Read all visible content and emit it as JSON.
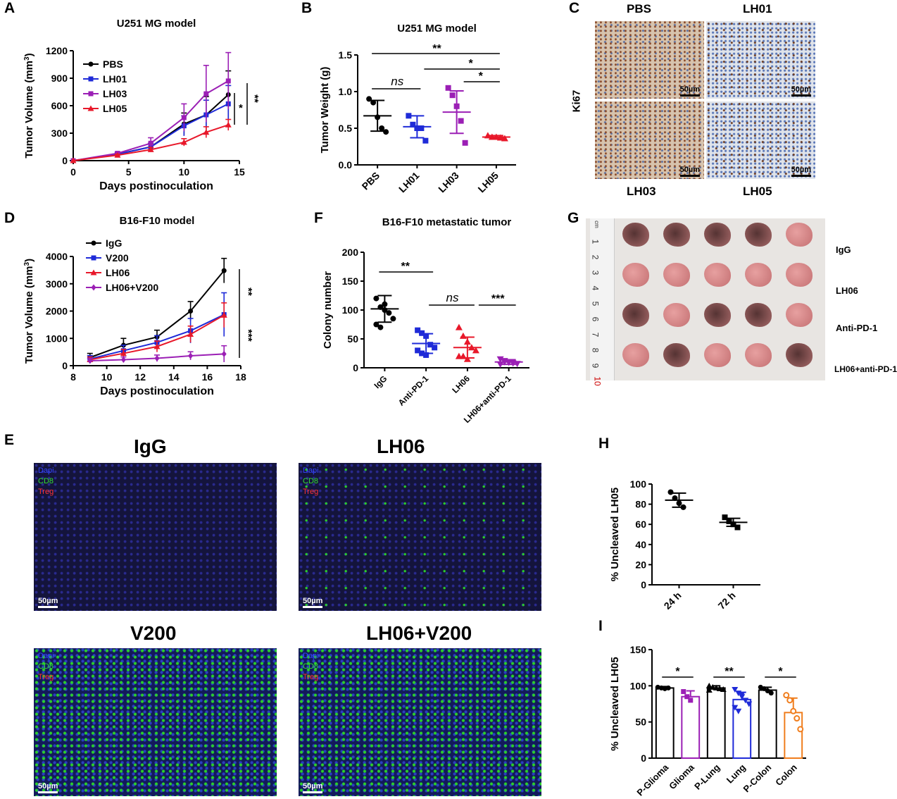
{
  "panels": {
    "A": {
      "label": "A",
      "title": "U251 MG model",
      "ylabel": "Tumor Volume (mm",
      "ylabel_sup": "3",
      "ylabel_end": ")",
      "xlabel": "Days postinoculation",
      "yticks": [
        "0",
        "300",
        "600",
        "900",
        "1200"
      ],
      "xticks": [
        "0",
        "5",
        "10",
        "15"
      ],
      "legend": [
        "PBS",
        "LH01",
        "LH03",
        "LH05"
      ],
      "sig": [
        "*",
        "**"
      ]
    },
    "B": {
      "label": "B",
      "title": "U251 MG model",
      "ylabel": "Tumor Weight (g)",
      "yticks": [
        "0.0",
        "0.5",
        "1.0",
        "1.5"
      ],
      "xticks": [
        "PBS",
        "LH01",
        "LH03",
        "LH05"
      ],
      "sig": [
        "**",
        "ns",
        "*",
        "*"
      ]
    },
    "C": {
      "label": "C",
      "top": [
        "PBS",
        "LH01"
      ],
      "bottom": [
        "LH03",
        "LH05"
      ],
      "side": "Ki67",
      "scale": "50µm"
    },
    "D": {
      "label": "D",
      "title": "B16-F10 model",
      "ylabel": "Tumor Volume (mm",
      "ylabel_sup": "3",
      "ylabel_end": ")",
      "xlabel": "Days postinoculation",
      "yticks": [
        "0",
        "1000",
        "2000",
        "3000",
        "4000"
      ],
      "xticks": [
        "8",
        "10",
        "12",
        "14",
        "16",
        "18"
      ],
      "legend": [
        "IgG",
        "V200",
        "LH06",
        "LH06+V200"
      ],
      "sig": [
        "**",
        "***"
      ]
    },
    "F": {
      "label": "F",
      "title": "B16-F10 metastatic tumor",
      "ylabel": "Colony number",
      "yticks": [
        "0",
        "50",
        "100",
        "150",
        "200"
      ],
      "xticks": [
        "IgG",
        "Anti-PD-1",
        "LH06",
        "LH06+anti-PD-1"
      ],
      "sig": [
        "**",
        "ns",
        "***"
      ]
    },
    "G": {
      "label": "G",
      "rows": [
        "IgG",
        "LH06",
        "Anti-PD-1",
        "LH06+anti-PD-1"
      ],
      "ruler": [
        "cm",
        "1",
        "2",
        "3",
        "4",
        "5",
        "6",
        "7",
        "8",
        "9",
        "10"
      ]
    },
    "E": {
      "label": "E",
      "images": [
        {
          "title": "IgG",
          "channels": [
            "Dapi",
            "CD8",
            "Treg"
          ],
          "scale": "50µm"
        },
        {
          "title": "LH06",
          "channels": [
            "Dapi",
            "CD8",
            "Treg"
          ],
          "scale": "50µm"
        },
        {
          "title": "V200",
          "channels": [
            "Dapi",
            "CD8",
            "Treg"
          ],
          "scale": "50µm"
        },
        {
          "title": "LH06+V200",
          "channels": [
            "Dapi",
            "CD8",
            "Treg"
          ],
          "scale": "50µm"
        }
      ]
    },
    "H": {
      "label": "H",
      "ylabel": "% Uncleaved LH05",
      "yticks": [
        "0",
        "20",
        "40",
        "60",
        "80",
        "100"
      ],
      "xticks": [
        "24 h",
        "72 h"
      ]
    },
    "I": {
      "label": "I",
      "ylabel": "% Uncleaved LH05",
      "yticks": [
        "0",
        "50",
        "100",
        "150"
      ],
      "xticks": [
        "P-Glioma",
        "Glioma",
        "P-Lung",
        "Lung",
        "P-Colon",
        "Colon"
      ],
      "sig": [
        "*",
        "**",
        "*"
      ]
    }
  },
  "colors": {
    "black": "#000000",
    "blue": "#1f2bd8",
    "purple": "#9b1fb5",
    "red": "#e8182a",
    "orange": "#f07e1e"
  },
  "chart_data": [
    {
      "panel": "A",
      "type": "line",
      "x": [
        0,
        4,
        7,
        10,
        12,
        14
      ],
      "xlim": [
        0,
        15
      ],
      "ylim": [
        0,
        1200
      ],
      "series": [
        {
          "name": "PBS",
          "color": "black",
          "marker": "circle",
          "values": [
            0,
            70,
            150,
            400,
            500,
            720
          ],
          "err": [
            0,
            15,
            40,
            120,
            200,
            260
          ]
        },
        {
          "name": "LH01",
          "color": "blue",
          "marker": "square",
          "values": [
            0,
            70,
            150,
            380,
            500,
            620
          ],
          "err": [
            0,
            15,
            40,
            110,
            160,
            200
          ]
        },
        {
          "name": "LH03",
          "color": "purple",
          "marker": "square",
          "values": [
            0,
            80,
            190,
            470,
            730,
            870
          ],
          "err": [
            0,
            15,
            60,
            150,
            310,
            310
          ]
        },
        {
          "name": "LH05",
          "color": "red",
          "marker": "triangle",
          "values": [
            0,
            60,
            120,
            200,
            310,
            390
          ],
          "err": [
            0,
            10,
            25,
            40,
            60,
            60
          ]
        }
      ]
    },
    {
      "panel": "B",
      "type": "scatter",
      "categories": [
        "PBS",
        "LH01",
        "LH03",
        "LH05"
      ],
      "ylim": [
        0,
        1.5
      ],
      "groups": [
        {
          "color": "black",
          "marker": "circle",
          "mean": 0.67,
          "sd": 0.21,
          "points": [
            0.9,
            0.85,
            0.65,
            0.5,
            0.45
          ]
        },
        {
          "color": "blue",
          "marker": "square",
          "mean": 0.52,
          "sd": 0.15,
          "points": [
            0.67,
            0.55,
            0.5,
            0.5,
            0.33
          ]
        },
        {
          "color": "purple",
          "marker": "square",
          "mean": 0.72,
          "sd": 0.29,
          "points": [
            1.05,
            0.95,
            0.8,
            0.6,
            0.3
          ]
        },
        {
          "color": "red",
          "marker": "triangle",
          "mean": 0.38,
          "sd": 0.02,
          "points": [
            0.4,
            0.38,
            0.38,
            0.37,
            0.36
          ]
        }
      ]
    },
    {
      "panel": "D",
      "type": "line",
      "x": [
        9,
        11,
        13,
        15,
        17
      ],
      "xlim": [
        8,
        18
      ],
      "ylim": [
        0,
        4000
      ],
      "series": [
        {
          "name": "IgG",
          "color": "black",
          "marker": "circle",
          "values": [
            300,
            750,
            1050,
            2000,
            3480
          ],
          "err": [
            150,
            250,
            250,
            350,
            450
          ]
        },
        {
          "name": "V200",
          "color": "blue",
          "marker": "square",
          "values": [
            250,
            550,
            850,
            1280,
            1870
          ],
          "err": [
            120,
            200,
            250,
            450,
            800
          ]
        },
        {
          "name": "LH06",
          "color": "red",
          "marker": "triangle",
          "values": [
            220,
            450,
            700,
            1150,
            1850
          ],
          "err": [
            100,
            150,
            200,
            300,
            450
          ]
        },
        {
          "name": "LH06+V200",
          "color": "purple",
          "marker": "diamond",
          "values": [
            180,
            220,
            270,
            360,
            430
          ],
          "err": [
            80,
            100,
            120,
            150,
            300
          ]
        }
      ]
    },
    {
      "panel": "F",
      "type": "scatter",
      "categories": [
        "IgG",
        "Anti-PD-1",
        "LH06",
        "LH06+anti-PD-1"
      ],
      "ylim": [
        0,
        200
      ],
      "groups": [
        {
          "color": "black",
          "marker": "circle",
          "mean": 102,
          "sd": 23,
          "points": [
            120,
            105,
            100,
            95,
            85,
            75,
            70,
            110
          ]
        },
        {
          "color": "blue",
          "marker": "square",
          "mean": 42,
          "sd": 17,
          "points": [
            65,
            60,
            55,
            40,
            35,
            30,
            25,
            22
          ]
        },
        {
          "color": "red",
          "marker": "triangle",
          "mean": 35,
          "sd": 18,
          "points": [
            70,
            55,
            45,
            35,
            30,
            20,
            20,
            15
          ]
        },
        {
          "color": "purple",
          "marker": "triangle-down",
          "mean": 10,
          "sd": 4,
          "points": [
            15,
            12,
            10,
            8,
            7,
            6,
            10,
            9
          ]
        }
      ]
    },
    {
      "panel": "H",
      "type": "scatter",
      "categories": [
        "24 h",
        "72 h"
      ],
      "ylim": [
        0,
        100
      ],
      "groups": [
        {
          "color": "black",
          "marker": "circle",
          "mean": 84,
          "sd": 7,
          "points": [
            92,
            86,
            81,
            77
          ]
        },
        {
          "color": "black",
          "marker": "square",
          "mean": 62,
          "sd": 4,
          "points": [
            67,
            63,
            60,
            57
          ]
        }
      ]
    },
    {
      "panel": "I",
      "type": "bar",
      "categories": [
        "P-Glioma",
        "Glioma",
        "P-Lung",
        "Lung",
        "P-Colon",
        "Colon"
      ],
      "ylim": [
        0,
        150
      ],
      "groups": [
        {
          "color": "black",
          "marker": "circle",
          "mean": 97,
          "sd": 2,
          "points": [
            98,
            97,
            96,
            97
          ]
        },
        {
          "color": "purple",
          "marker": "square",
          "mean": 85,
          "sd": 8,
          "points": [
            92,
            85,
            80
          ]
        },
        {
          "color": "black",
          "marker": "triangle",
          "mean": 97,
          "sd": 3,
          "points": [
            100,
            98,
            97,
            96,
            95,
            94
          ]
        },
        {
          "color": "blue",
          "marker": "triangle-down",
          "mean": 81,
          "sd": 10,
          "points": [
            95,
            90,
            85,
            80,
            75,
            70,
            65,
            88
          ]
        },
        {
          "color": "black",
          "marker": "circle",
          "mean": 94,
          "sd": 4,
          "points": [
            98,
            96,
            93,
            90
          ]
        },
        {
          "color": "orange",
          "marker": "circle-open",
          "mean": 63,
          "sd": 20,
          "points": [
            87,
            80,
            65,
            55,
            40
          ]
        }
      ]
    }
  ]
}
